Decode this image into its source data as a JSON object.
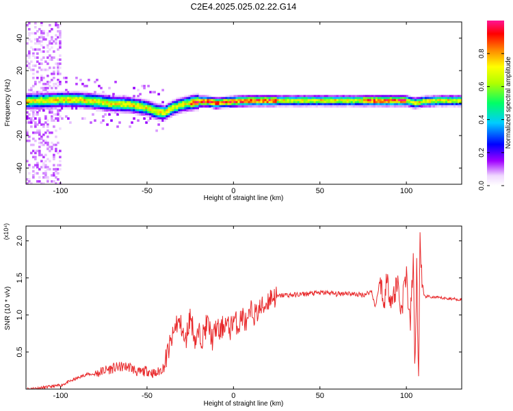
{
  "title": "C2E4.2025.025.02.22.G14",
  "colors": {
    "snr_line": "#e8282a",
    "axis": "#000000"
  },
  "chart_data": [
    {
      "type": "heatmap",
      "name": "spectrogram",
      "xlabel": "Height of straight line (km)",
      "ylabel": "Frequency (Hz)",
      "xlim": [
        -120,
        132
      ],
      "ylim": [
        -50,
        50
      ],
      "x_ticks": [
        "-100",
        "-50",
        "0",
        "50",
        "100"
      ],
      "x_tick_values": [
        -100,
        -50,
        0,
        50,
        100
      ],
      "y_ticks": [
        "-40",
        "-20",
        "0",
        "20",
        "40"
      ],
      "y_tick_values": [
        -40,
        -20,
        0,
        20,
        40
      ],
      "colorbar": {
        "label": "Normalized spectral amplitude",
        "range": [
          0,
          1
        ],
        "ticks": [
          "0.0",
          "0.2",
          "0.4",
          "0.6",
          "0.8"
        ],
        "tick_values": [
          0,
          0.2,
          0.4,
          0.6,
          0.8
        ]
      },
      "ridge": {
        "x": [
          -120,
          -110,
          -100,
          -90,
          -80,
          -70,
          -60,
          -50,
          -45,
          -40,
          -35,
          -30,
          -25,
          -20,
          -15,
          -10,
          -5,
          0,
          10,
          20,
          30,
          40,
          50,
          60,
          70,
          80,
          90,
          100,
          105,
          110,
          120,
          132
        ],
        "y": [
          1,
          1.5,
          2,
          2,
          1,
          -0.5,
          -1,
          -3,
          -5,
          -6,
          -3,
          -1,
          0,
          1,
          1,
          0,
          0.5,
          1,
          1.5,
          1.5,
          1.5,
          1.5,
          1.5,
          1.5,
          1.5,
          1.5,
          1.5,
          1.5,
          0,
          1,
          1.5,
          1.5
        ]
      }
    },
    {
      "type": "line",
      "name": "snr",
      "xlabel": "Height of straight line (km)",
      "ylabel": "SNR (10 * v/v)",
      "scale_label": "(x10⁴)",
      "xlim": [
        -120,
        132
      ],
      "ylim": [
        0,
        2.2
      ],
      "x_ticks": [
        "-100",
        "-50",
        "0",
        "50",
        "100"
      ],
      "x_tick_values": [
        -100,
        -50,
        0,
        50,
        100
      ],
      "y_ticks": [
        "0.5",
        "1.0",
        "1.5",
        "2.0"
      ],
      "y_tick_values": [
        0.5,
        1.0,
        1.5,
        2.0
      ],
      "series": [
        {
          "x": [
            -120,
            -110,
            -100,
            -95,
            -90,
            -85,
            -80,
            -75,
            -70,
            -65,
            -60,
            -55,
            -50,
            -45,
            -40,
            -38,
            -35,
            -33,
            -30,
            -28,
            -25,
            -22,
            -20,
            -18,
            -15,
            -12,
            -10,
            -8,
            -5,
            -2,
            0,
            3,
            5,
            8,
            10,
            13,
            15,
            18,
            20,
            22,
            25,
            27,
            30,
            35,
            40,
            45,
            50,
            55,
            60,
            65,
            70,
            75,
            80,
            82,
            85,
            87,
            88,
            90,
            92,
            95,
            97,
            100,
            102,
            104,
            105,
            106,
            107,
            108,
            109,
            110,
            112,
            115,
            120,
            125,
            132
          ],
          "y": [
            0.0,
            0.02,
            0.05,
            0.1,
            0.15,
            0.2,
            0.2,
            0.25,
            0.28,
            0.3,
            0.3,
            0.22,
            0.25,
            0.2,
            0.3,
            0.5,
            0.7,
            0.9,
            0.85,
            0.6,
            1.0,
            0.65,
            0.75,
            0.7,
            0.9,
            0.65,
            0.85,
            0.75,
            0.9,
            0.8,
            0.95,
            0.85,
            1.0,
            0.85,
            1.05,
            1.0,
            1.08,
            1.12,
            1.2,
            1.25,
            1.24,
            1.26,
            1.27,
            1.27,
            1.28,
            1.29,
            1.3,
            1.3,
            1.28,
            1.3,
            1.28,
            1.27,
            1.32,
            1.1,
            1.5,
            1.05,
            1.45,
            1.35,
            1.2,
            1.45,
            1.05,
            1.6,
            0.8,
            1.7,
            0.3,
            1.65,
            0.05,
            2.2,
            1.3,
            1.25,
            1.25,
            1.24,
            1.23,
            1.22,
            1.21
          ]
        }
      ]
    }
  ]
}
